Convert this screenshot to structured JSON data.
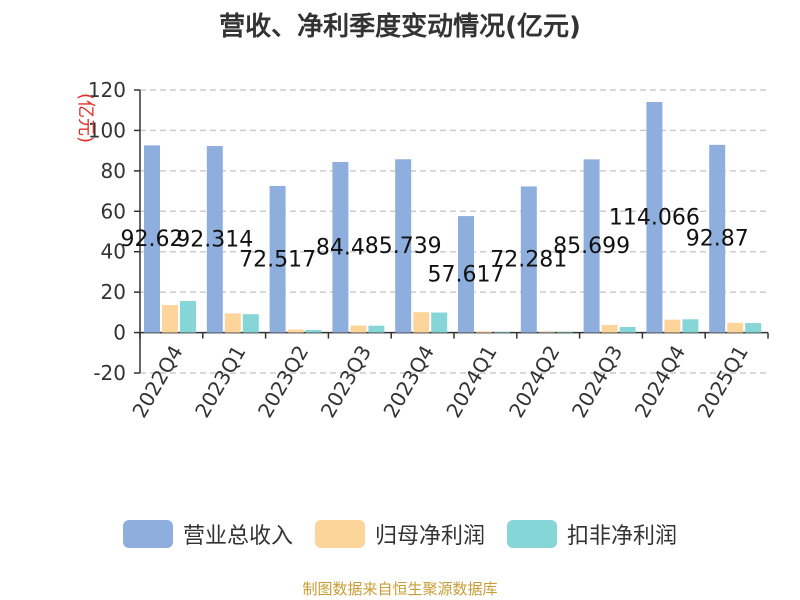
{
  "chart_data": {
    "type": "bar",
    "title": "营收、净利季度变动情况(亿元)",
    "ylabel": "(亿元)",
    "ylim": [
      -20,
      120
    ],
    "yticks": [
      -20,
      0,
      20,
      40,
      60,
      80,
      100,
      120
    ],
    "grid": true,
    "legend_position": "bottom",
    "categories": [
      "2022Q4",
      "2023Q1",
      "2023Q2",
      "2023Q3",
      "2023Q4",
      "2024Q1",
      "2024Q2",
      "2024Q3",
      "2024Q4",
      "2025Q1"
    ],
    "series": [
      {
        "name": "营业总收入",
        "color": "#8eaedd",
        "values": [
          92.62,
          92.314,
          72.517,
          84.4,
          85.739,
          57.617,
          72.281,
          85.699,
          114.066,
          92.87
        ],
        "labels": [
          "92.62",
          "92.314",
          "72.517",
          "84.4",
          "85.739",
          "57.617",
          "72.281",
          "85.699",
          "114.066",
          "92.87"
        ]
      },
      {
        "name": "归母净利润",
        "color": "#fdd59b",
        "values": [
          13.6,
          9.5,
          1.5,
          3.5,
          10.1,
          0.6,
          0.2,
          3.8,
          6.4,
          4.8
        ]
      },
      {
        "name": "扣非净利润",
        "color": "#86d6d8",
        "values": [
          15.6,
          9.1,
          1.3,
          3.4,
          9.9,
          0.3,
          0.1,
          2.8,
          6.6,
          4.7
        ]
      }
    ]
  },
  "source": "制图数据来自恒生聚源数据库"
}
